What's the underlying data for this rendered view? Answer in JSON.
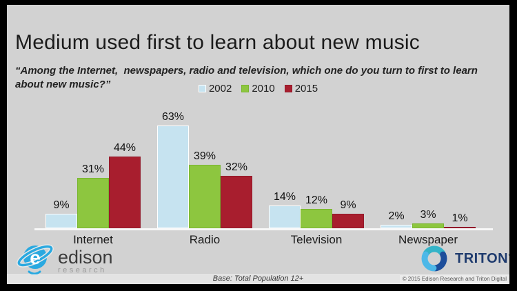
{
  "title": "Medium used first to learn about new music",
  "subtitle": "“Among the Internet,  newspapers, radio and television, which one do you turn to first to learn\nabout new music?”",
  "chart_data": {
    "type": "bar",
    "title": "Medium used first to learn about new music",
    "categories": [
      "Internet",
      "Radio",
      "Television",
      "Newspaper"
    ],
    "series": [
      {
        "name": "2002",
        "color": "#C6E3F0",
        "border_color": "#FFFFFF",
        "values": [
          9,
          63,
          14,
          2
        ]
      },
      {
        "name": "2010",
        "color": "#8DC63F",
        "border_color": "#79B62F",
        "values": [
          31,
          39,
          12,
          3
        ]
      },
      {
        "name": "2015",
        "color": "#A81E2E",
        "border_color": "#93192A",
        "values": [
          44,
          32,
          9,
          1
        ]
      }
    ],
    "value_suffix": "%",
    "ylim": [
      0,
      70
    ],
    "data_labels": true,
    "legend_position": "top",
    "grid": false,
    "xlabel": "",
    "ylabel": ""
  },
  "footer": {
    "base_note": "Base: Total Population 12+",
    "copyright": "© 2015 Edison Research and Triton Digital"
  },
  "logos": {
    "edison": {
      "name": "edison",
      "subname": "research"
    },
    "triton": {
      "name": "TRITON",
      "tm": "™"
    }
  },
  "colors": {
    "slide_bg": "#D2D2D2",
    "frame": "#000000",
    "axis_line": "#F8F8F8",
    "title_text": "#1B1B1B",
    "edison_blue": "#2AA9E0",
    "triton_navy": "#1F3B6E",
    "triton_teal": "#35B4C8",
    "triton_lightblue": "#4DB8E8",
    "triton_darkblue": "#1D4E9B"
  }
}
